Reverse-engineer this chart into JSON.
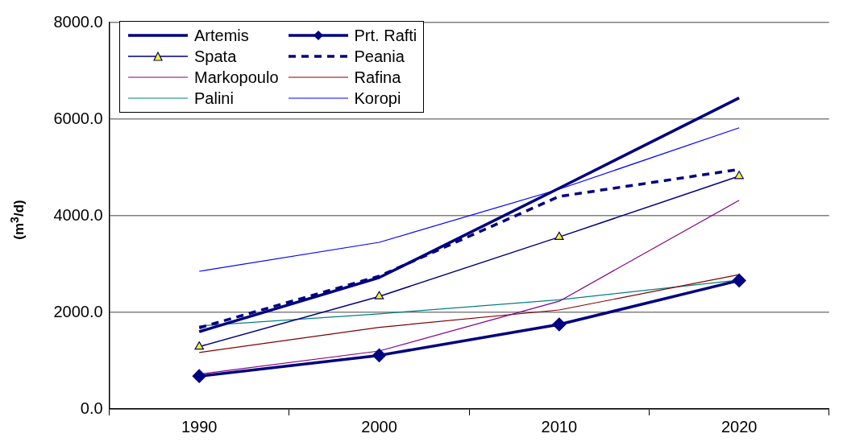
{
  "chart_data": {
    "type": "line",
    "ylabel": "(m$^{3}$/d)",
    "categories": [
      "1990",
      "2000",
      "2010",
      "2020"
    ],
    "ylim": [
      0,
      8000
    ],
    "yticks": [
      {
        "value": 0,
        "label": "0.0"
      },
      {
        "value": 2000,
        "label": "2000.0"
      },
      {
        "value": 4000,
        "label": "4000.0"
      },
      {
        "value": 6000,
        "label": "6000.0"
      },
      {
        "value": 8000,
        "label": "8000.0"
      }
    ],
    "grid": "y",
    "legend": "top left",
    "series": [
      {
        "name": "Artemis",
        "color": "#000080",
        "values": [
          1600,
          2720,
          4570,
          6440
        ],
        "marker": "none",
        "line_style": "solid"
      },
      {
        "name": "Prt. Rafti",
        "color": "#000080",
        "values": [
          680,
          1110,
          1750,
          2660
        ],
        "marker": "diamond",
        "line_style": "solid"
      },
      {
        "name": "Spata",
        "color": "#000080",
        "values": [
          1290,
          2330,
          3560,
          4820
        ],
        "marker": "triangle",
        "line_style": "solid"
      },
      {
        "name": "Peania",
        "color": "#000080",
        "values": [
          1680,
          2750,
          4400,
          4960
        ],
        "marker": "none",
        "line_style": "dashed"
      },
      {
        "name": "Markopoulo",
        "color": "#800080",
        "values": [
          720,
          1200,
          2230,
          4320
        ],
        "marker": "none",
        "line_style": "solid"
      },
      {
        "name": "Rafina",
        "color": "#800000",
        "values": [
          1170,
          1690,
          2050,
          2780
        ],
        "marker": "none",
        "line_style": "solid"
      },
      {
        "name": "Palini",
        "color": "#008080",
        "values": [
          1720,
          1970,
          2260,
          2670
        ],
        "marker": "none",
        "line_style": "solid"
      },
      {
        "name": "Koropi",
        "color": "#0000ff",
        "values": [
          2850,
          3450,
          4550,
          5820
        ],
        "marker": "none",
        "line_style": "solid"
      }
    ]
  }
}
